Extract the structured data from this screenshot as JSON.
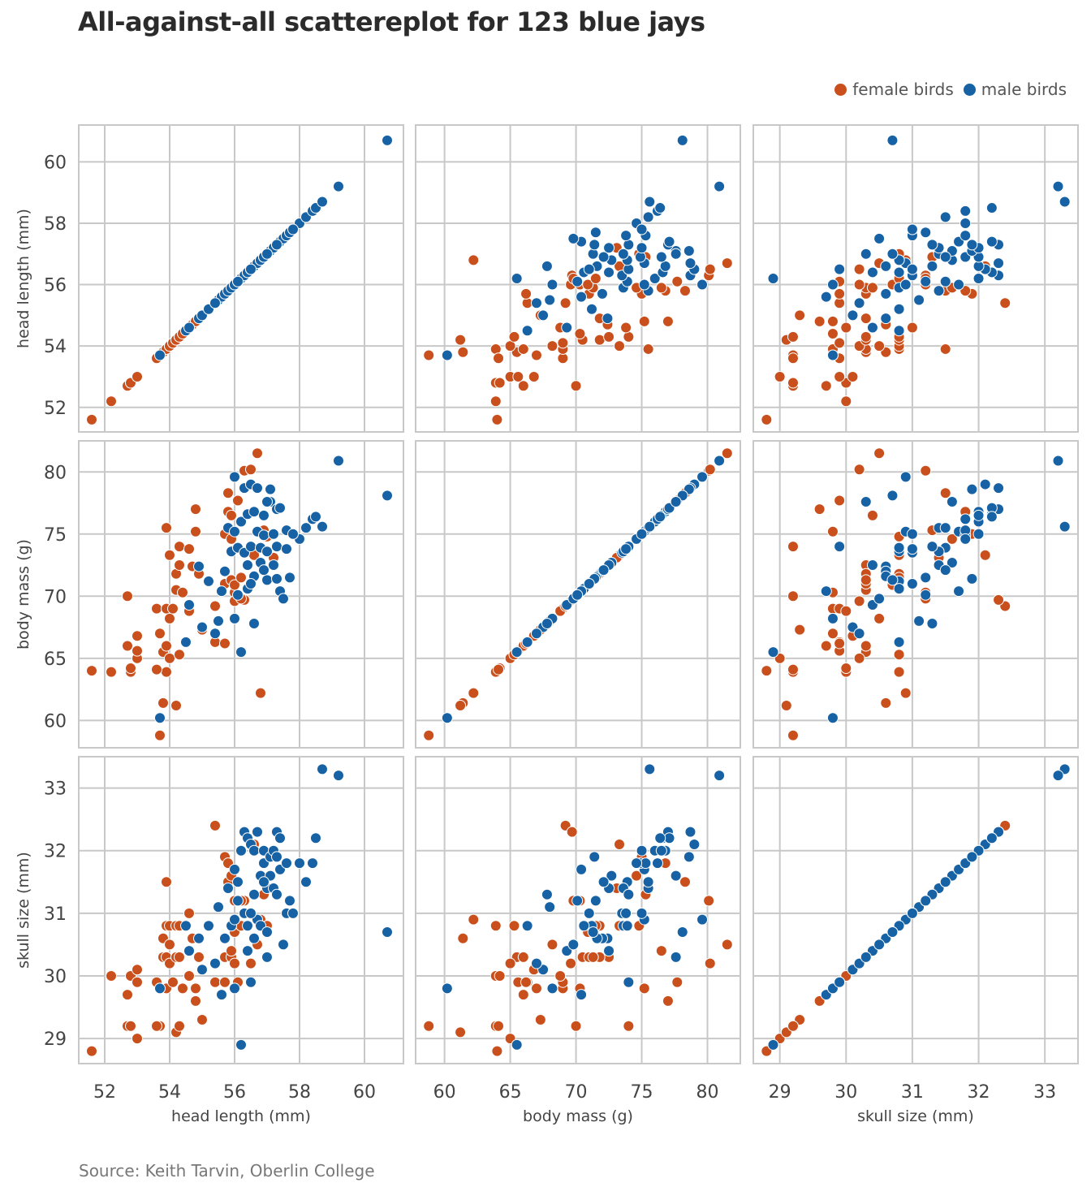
{
  "title": "All-against-all scattereplot for 123 blue jays",
  "source": "Source: Keith Tarvin, Oberlin College",
  "legend": [
    {
      "label": "female birds",
      "color": "#c9501c"
    },
    {
      "label": "male birds",
      "color": "#1662a5"
    }
  ],
  "chart_data": {
    "type": "scatter",
    "title": "All-against-all scattereplot for 123 blue jays",
    "grid": true,
    "legend_position": "top-right",
    "variables": [
      {
        "key": "head",
        "label": "head length (mm)",
        "lim": [
          51.2,
          61.2
        ],
        "ticks": [
          52,
          54,
          56,
          58,
          60
        ]
      },
      {
        "key": "mass",
        "label": "body mass (g)",
        "lim": [
          57.8,
          82.5
        ],
        "ticks": [
          60,
          65,
          70,
          75,
          80
        ]
      },
      {
        "key": "skull",
        "label": "skull size (mm)",
        "lim": [
          28.6,
          33.5
        ],
        "ticks": [
          29,
          30,
          31,
          32,
          33
        ]
      }
    ],
    "series": [
      {
        "name": "female birds",
        "color": "#c9501c",
        "points": [
          [
            51.6,
            64.0,
            28.8
          ],
          [
            52.2,
            63.9,
            30.0
          ],
          [
            52.7,
            66.0,
            29.7
          ],
          [
            52.7,
            70.0,
            29.2
          ],
          [
            52.8,
            63.9,
            29.2
          ],
          [
            52.8,
            64.2,
            30.0
          ],
          [
            53.0,
            66.8,
            30.1
          ],
          [
            53.0,
            65.0,
            29.0
          ],
          [
            53.0,
            65.6,
            29.9
          ],
          [
            53.6,
            69.0,
            29.9
          ],
          [
            53.7,
            67.0,
            29.8
          ],
          [
            53.7,
            58.8,
            29.2
          ],
          [
            53.8,
            61.4,
            30.6
          ],
          [
            53.8,
            65.5,
            30.3
          ],
          [
            53.9,
            75.5,
            31.5
          ],
          [
            53.9,
            66.0,
            30.3
          ],
          [
            53.9,
            63.9,
            30.8
          ],
          [
            53.9,
            69.0,
            29.8
          ],
          [
            54.0,
            73.3,
            30.8
          ],
          [
            54.0,
            65.0,
            30.2
          ],
          [
            54.0,
            68.2,
            30.5
          ],
          [
            54.1,
            69.0,
            29.9
          ],
          [
            54.2,
            70.5,
            30.3
          ],
          [
            54.2,
            61.2,
            29.1
          ],
          [
            54.2,
            71.8,
            30.8
          ],
          [
            54.3,
            72.5,
            30.3
          ],
          [
            54.3,
            74.0,
            29.2
          ],
          [
            54.3,
            65.3,
            30.8
          ],
          [
            54.4,
            70.3,
            29.8
          ],
          [
            54.6,
            73.8,
            31.0
          ],
          [
            54.6,
            68.8,
            30.0
          ],
          [
            54.7,
            72.4,
            30.6
          ],
          [
            54.8,
            75.2,
            29.8
          ],
          [
            54.8,
            77.0,
            29.6
          ],
          [
            54.9,
            71.8,
            30.3
          ],
          [
            55.0,
            67.3,
            29.3
          ],
          [
            55.4,
            66.3,
            29.9
          ],
          [
            55.4,
            69.2,
            32.4
          ],
          [
            55.7,
            66.2,
            29.9
          ],
          [
            55.7,
            71.0,
            30.3
          ],
          [
            55.7,
            75.0,
            31.9
          ],
          [
            55.8,
            78.3,
            31.5
          ],
          [
            55.8,
            76.8,
            31.8
          ],
          [
            55.9,
            74.6,
            31.6
          ],
          [
            55.9,
            71.3,
            30.3
          ],
          [
            55.9,
            76.5,
            30.4
          ],
          [
            56.0,
            70.3,
            31.2
          ],
          [
            56.0,
            69.6,
            30.2
          ],
          [
            56.0,
            70.9,
            30.7
          ],
          [
            56.1,
            77.7,
            29.9
          ],
          [
            56.2,
            71.5,
            30.8
          ],
          [
            56.3,
            80.1,
            31.2
          ],
          [
            56.3,
            69.7,
            32.3
          ],
          [
            56.5,
            80.2,
            30.2
          ],
          [
            56.6,
            73.3,
            32.1
          ],
          [
            56.7,
            81.5,
            30.5
          ],
          [
            56.8,
            62.2,
            30.9
          ],
          [
            56.9,
            75.3,
            31.3
          ],
          [
            57.0,
            74.8,
            30.8
          ],
          [
            57.2,
            73.1,
            31.4
          ],
          [
            53.6,
            64.1,
            29.2
          ],
          [
            56.2,
            69.8,
            31.2
          ]
        ]
      },
      {
        "name": "male birds",
        "color": "#1662a5",
        "points": [
          [
            53.7,
            60.2,
            29.8
          ],
          [
            54.5,
            66.3,
            30.8
          ],
          [
            54.6,
            69.3,
            30.4
          ],
          [
            54.9,
            72.4,
            30.6
          ],
          [
            55.0,
            67.5,
            30.1
          ],
          [
            55.2,
            71.2,
            30.8
          ],
          [
            55.5,
            68.0,
            31.1
          ],
          [
            55.6,
            70.4,
            29.7
          ],
          [
            55.7,
            72.0,
            30.6
          ],
          [
            55.8,
            75.5,
            31.4
          ],
          [
            55.9,
            73.6,
            30.8
          ],
          [
            56.0,
            79.6,
            30.9
          ],
          [
            56.0,
            75.2,
            31.7
          ],
          [
            56.0,
            68.2,
            29.8
          ],
          [
            56.1,
            73.9,
            31.5
          ],
          [
            56.2,
            76.0,
            32.0
          ],
          [
            56.2,
            65.5,
            28.9
          ],
          [
            56.3,
            78.7,
            32.3
          ],
          [
            56.3,
            73.5,
            31.0
          ],
          [
            56.4,
            76.6,
            32.2
          ],
          [
            56.4,
            72.5,
            30.4
          ],
          [
            56.4,
            70.6,
            30.8
          ],
          [
            56.5,
            74.0,
            29.9
          ],
          [
            56.5,
            79.0,
            32.1
          ],
          [
            56.6,
            76.8,
            32.0
          ],
          [
            56.6,
            71.6,
            30.6
          ],
          [
            56.6,
            67.8,
            31.3
          ],
          [
            56.7,
            75.2,
            30.9
          ],
          [
            56.7,
            78.7,
            32.3
          ],
          [
            56.8,
            72.7,
            31.6
          ],
          [
            56.8,
            73.9,
            30.8
          ],
          [
            56.9,
            74.9,
            31.8
          ],
          [
            56.9,
            76.5,
            32.0
          ],
          [
            57.0,
            73.6,
            31.4
          ],
          [
            57.0,
            71.3,
            30.7
          ],
          [
            57.1,
            77.6,
            31.6
          ],
          [
            57.1,
            78.6,
            31.9
          ],
          [
            57.2,
            75.0,
            32.0
          ],
          [
            57.2,
            72.5,
            31.4
          ],
          [
            57.3,
            74.0,
            31.3
          ],
          [
            57.3,
            77.0,
            32.3
          ],
          [
            57.4,
            70.4,
            31.7
          ],
          [
            57.4,
            77.1,
            32.2
          ],
          [
            57.5,
            69.8,
            30.5
          ],
          [
            57.6,
            73.8,
            31.0
          ],
          [
            57.6,
            75.3,
            31.8
          ],
          [
            57.7,
            71.5,
            31.2
          ],
          [
            58.0,
            74.6,
            31.8
          ],
          [
            58.2,
            75.5,
            31.5
          ],
          [
            58.4,
            76.2,
            31.8
          ],
          [
            58.5,
            76.4,
            32.2
          ],
          [
            58.7,
            75.6,
            33.3
          ],
          [
            59.2,
            80.9,
            33.2
          ],
          [
            60.7,
            78.1,
            30.7
          ],
          [
            55.4,
            67.0,
            30.2
          ],
          [
            56.9,
            72.1,
            31.5
          ],
          [
            57.3,
            71.4,
            31.9
          ],
          [
            56.1,
            70.1,
            31.2
          ],
          [
            57.0,
            77.6,
            30.3
          ],
          [
            56.5,
            71.0,
            31.0
          ],
          [
            57.8,
            75.0,
            31.0
          ]
        ]
      }
    ]
  }
}
